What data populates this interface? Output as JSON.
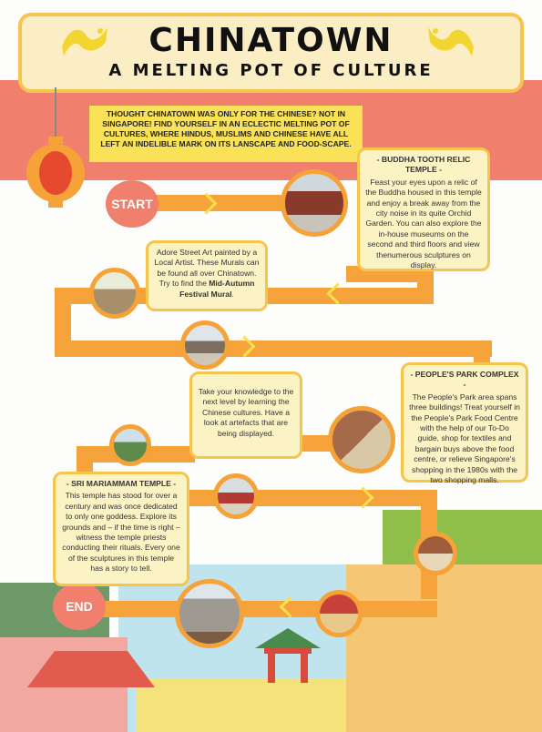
{
  "title": "CHINATOWN",
  "subtitle": "A MELTING POT OF CULTURE",
  "intro": "Thought Chinatown was only for the Chinese? Not in Singapore! Find yourself in an eclectic melting pot of cultures, where Hindus, Muslims and Chinese have all left an indelible mark on its lanscape and food-scape.",
  "start_label": "START",
  "end_label": "END",
  "buddha": {
    "title": "- BUDDHA TOOTH RELIC TEMPLE -",
    "body": "Feast your eyes upon a relic of the Buddha housed in this temple and enjoy a break away from the city noise in its quite Orchid Garden. You can also explore the in-house museums on the second and third floors and view thenumerous sculptures on display."
  },
  "mural": {
    "body_before": "Adore Street Art painted by a Local Artist. These Murals can be found all over Chinatown. Try to find the ",
    "bold": "Mid-Autumn Festival Mural",
    "body_after": "."
  },
  "heritage": {
    "body": "Take your knowledge to the next level by learning the Chinese cultures. Have a look at artefacts that are being displayed."
  },
  "peoples": {
    "title": "- PEOPLE'S PARK COMPLEX -",
    "body": "The People's Park area spans three buildings! Treat yourself in the People's Park Food Centre with the help of our To-Do guide, shop for textiles and bargain buys above the food centre, or relieve Singapore's shopping in the 1980s with the two shopping malls."
  },
  "mariamman": {
    "title": "- SRI MARIAMMAM TEMPLE -",
    "body": "This temple has stood for over a century and was once dedicated to only one goddess. Explore its grounds and – if the time is right – witness the temple priests conducting their rituals. Every one of the sculptures in this temple has a story to tell."
  }
}
